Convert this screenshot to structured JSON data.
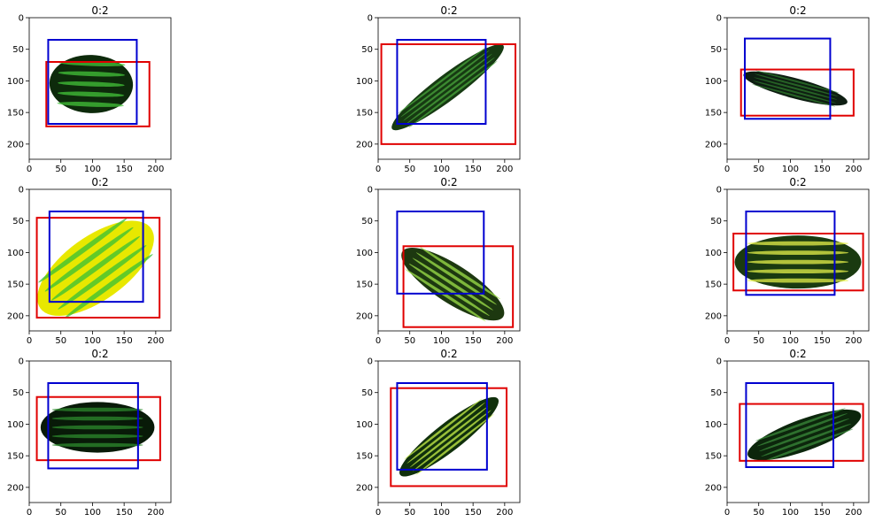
{
  "figure": {
    "background": "#ffffff",
    "colors": {
      "box_red": "#e00000",
      "box_blue": "#0000d0",
      "axis": "#000000"
    }
  },
  "chart_data": [
    {
      "type": "image-with-boxes",
      "title": "0:2",
      "xticks": [
        0,
        50,
        100,
        150,
        200
      ],
      "yticks": [
        0,
        50,
        100,
        150,
        200
      ],
      "xlim": [
        0,
        224
      ],
      "ylim": [
        224,
        0
      ],
      "boxes": [
        {
          "color": "red",
          "xmin": 27,
          "ymin": 70,
          "xmax": 190,
          "ymax": 172
        },
        {
          "color": "blue",
          "xmin": 30,
          "ymin": 35,
          "xmax": 170,
          "ymax": 168
        }
      ],
      "content": {
        "kind": "cucumber",
        "shape": "ellipse",
        "cx": 98,
        "cy": 105,
        "rx": 66,
        "ry": 46,
        "angle": 2,
        "fill": "#0d2a0b",
        "speck": "#43c43a"
      }
    },
    {
      "type": "image-with-boxes",
      "title": "0:2",
      "xticks": [
        0,
        50,
        100,
        150,
        200
      ],
      "yticks": [
        0,
        50,
        100,
        150,
        200
      ],
      "xlim": [
        0,
        224
      ],
      "ylim": [
        224,
        0
      ],
      "boxes": [
        {
          "color": "red",
          "xmin": 5,
          "ymin": 42,
          "xmax": 217,
          "ymax": 200
        },
        {
          "color": "blue",
          "xmin": 30,
          "ymin": 35,
          "xmax": 170,
          "ymax": 168
        }
      ],
      "content": {
        "kind": "cucumber",
        "shape": "ellipse",
        "cx": 110,
        "cy": 110,
        "rx": 110,
        "ry": 20,
        "angle": -37,
        "fill": "#163a12",
        "speck": "#4aa53c"
      }
    },
    {
      "type": "image-with-boxes",
      "title": "0:2",
      "xticks": [
        0,
        50,
        100,
        150,
        200
      ],
      "yticks": [
        0,
        50,
        100,
        150,
        200
      ],
      "xlim": [
        0,
        224
      ],
      "ylim": [
        224,
        0
      ],
      "boxes": [
        {
          "color": "red",
          "xmin": 22,
          "ymin": 82,
          "xmax": 200,
          "ymax": 155
        },
        {
          "color": "blue",
          "xmin": 28,
          "ymin": 33,
          "xmax": 163,
          "ymax": 160
        }
      ],
      "content": {
        "kind": "cucumber",
        "shape": "ellipse",
        "cx": 108,
        "cy": 112,
        "rx": 85,
        "ry": 16,
        "angle": 15,
        "fill": "#0e1e12",
        "speck": "#2f7a2c"
      }
    },
    {
      "type": "image-with-boxes",
      "title": "0:2",
      "xticks": [
        0,
        50,
        100,
        150,
        200
      ],
      "yticks": [
        0,
        50,
        100,
        150,
        200
      ],
      "xlim": [
        0,
        224
      ],
      "ylim": [
        224,
        0
      ],
      "boxes": [
        {
          "color": "red",
          "xmin": 12,
          "ymin": 45,
          "xmax": 206,
          "ymax": 203
        },
        {
          "color": "blue",
          "xmin": 32,
          "ymin": 35,
          "xmax": 180,
          "ymax": 178
        }
      ],
      "content": {
        "kind": "squash",
        "shape": "ellipse",
        "cx": 105,
        "cy": 125,
        "rx": 108,
        "ry": 50,
        "angle": -36,
        "fill": "#e8e800",
        "speck": "#36c036"
      }
    },
    {
      "type": "image-with-boxes",
      "title": "0:2",
      "xticks": [
        0,
        50,
        100,
        150,
        200
      ],
      "yticks": [
        0,
        50,
        100,
        150,
        200
      ],
      "xlim": [
        0,
        224
      ],
      "ylim": [
        224,
        0
      ],
      "boxes": [
        {
          "color": "red",
          "xmin": 40,
          "ymin": 90,
          "xmax": 213,
          "ymax": 218
        },
        {
          "color": "blue",
          "xmin": 30,
          "ymin": 35,
          "xmax": 167,
          "ymax": 165
        }
      ],
      "content": {
        "kind": "cucumber",
        "shape": "ellipse",
        "cx": 118,
        "cy": 150,
        "rx": 95,
        "ry": 30,
        "angle": 33,
        "fill": "#1d3810",
        "speck": "#9ee04a"
      }
    },
    {
      "type": "image-with-boxes",
      "title": "0:2",
      "xticks": [
        0,
        50,
        100,
        150,
        200
      ],
      "yticks": [
        0,
        50,
        100,
        150,
        200
      ],
      "xlim": [
        0,
        224
      ],
      "ylim": [
        224,
        0
      ],
      "boxes": [
        {
          "color": "red",
          "xmin": 10,
          "ymin": 70,
          "xmax": 215,
          "ymax": 160
        },
        {
          "color": "blue",
          "xmin": 30,
          "ymin": 35,
          "xmax": 170,
          "ymax": 167
        }
      ],
      "content": {
        "kind": "cucumber",
        "shape": "ellipse",
        "cx": 112,
        "cy": 115,
        "rx": 100,
        "ry": 42,
        "angle": 0,
        "fill": "#1a3a10",
        "speck": "#e6f04a"
      }
    },
    {
      "type": "image-with-boxes",
      "title": "0:2",
      "xticks": [
        0,
        50,
        100,
        150,
        200
      ],
      "yticks": [
        0,
        50,
        100,
        150,
        200
      ],
      "xlim": [
        0,
        224
      ],
      "ylim": [
        224,
        0
      ],
      "boxes": [
        {
          "color": "red",
          "xmin": 12,
          "ymin": 57,
          "xmax": 207,
          "ymax": 157
        },
        {
          "color": "blue",
          "xmin": 30,
          "ymin": 35,
          "xmax": 172,
          "ymax": 170
        }
      ],
      "content": {
        "kind": "cucumber",
        "shape": "ellipse",
        "cx": 108,
        "cy": 105,
        "rx": 90,
        "ry": 40,
        "angle": 0,
        "fill": "#081a08",
        "speck": "#2c8a2c"
      }
    },
    {
      "type": "image-with-boxes",
      "title": "0:2",
      "xticks": [
        0,
        50,
        100,
        150,
        200
      ],
      "yticks": [
        0,
        50,
        100,
        150,
        200
      ],
      "xlim": [
        0,
        224
      ],
      "ylim": [
        224,
        0
      ],
      "boxes": [
        {
          "color": "red",
          "xmin": 20,
          "ymin": 43,
          "xmax": 203,
          "ymax": 198
        },
        {
          "color": "blue",
          "xmin": 30,
          "ymin": 35,
          "xmax": 172,
          "ymax": 172
        }
      ],
      "content": {
        "kind": "cucumber",
        "shape": "ellipse",
        "cx": 112,
        "cy": 120,
        "rx": 98,
        "ry": 22,
        "angle": -38,
        "fill": "#10300c",
        "speck": "#c8f04a"
      }
    },
    {
      "type": "image-with-boxes",
      "title": "0:2",
      "xticks": [
        0,
        50,
        100,
        150,
        200
      ],
      "yticks": [
        0,
        50,
        100,
        150,
        200
      ],
      "xlim": [
        0,
        224
      ],
      "ylim": [
        224,
        0
      ],
      "boxes": [
        {
          "color": "red",
          "xmin": 20,
          "ymin": 68,
          "xmax": 215,
          "ymax": 158
        },
        {
          "color": "blue",
          "xmin": 30,
          "ymin": 35,
          "xmax": 168,
          "ymax": 168
        }
      ],
      "content": {
        "kind": "cucumber",
        "shape": "ellipse",
        "cx": 122,
        "cy": 117,
        "rx": 95,
        "ry": 25,
        "angle": -20,
        "fill": "#0c260c",
        "speck": "#3a8a3a"
      }
    }
  ]
}
